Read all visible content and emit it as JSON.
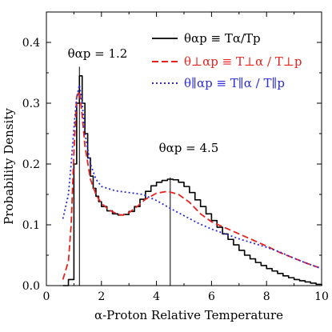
{
  "chart_data": {
    "type": "line",
    "xlabel": "α-Proton Relative Temperature",
    "ylabel": "Probability Density",
    "xlim": [
      0,
      10
    ],
    "ylim": [
      0,
      0.45
    ],
    "xticks": [
      0,
      2,
      4,
      6,
      8,
      10
    ],
    "yticks": [
      0.0,
      0.1,
      0.2,
      0.3,
      0.4
    ],
    "xtick_labels": [
      "0",
      "2",
      "4",
      "6",
      "8",
      "10"
    ],
    "ytick_labels": [
      "0.0",
      "0.1",
      "0.2",
      "0.3",
      "0.4"
    ],
    "grid": false,
    "legend_position": "top-right",
    "colors": {
      "total": "#000000",
      "perp": "#e8231f",
      "par": "#2b2bdc"
    },
    "series": [
      {
        "name": "θαp ≡ Tα/Tp",
        "style": "solid-step",
        "color": "#000000",
        "x": [
          0.6,
          0.8,
          1.0,
          1.1,
          1.2,
          1.3,
          1.4,
          1.5,
          1.6,
          1.7,
          1.8,
          1.9,
          2.0,
          2.2,
          2.4,
          2.6,
          2.8,
          3.0,
          3.2,
          3.4,
          3.6,
          3.8,
          4.0,
          4.2,
          4.4,
          4.6,
          4.8,
          5.0,
          5.2,
          5.4,
          5.6,
          5.8,
          6.0,
          6.2,
          6.4,
          6.6,
          6.8,
          7.0,
          7.2,
          7.4,
          7.6,
          7.8,
          8.0,
          8.2,
          8.4,
          8.6,
          8.8,
          9.0,
          9.2,
          9.4,
          9.6,
          9.8,
          10.0
        ],
        "y": [
          0.0,
          0.01,
          0.2,
          0.3,
          0.345,
          0.3,
          0.25,
          0.21,
          0.18,
          0.16,
          0.147,
          0.138,
          0.13,
          0.123,
          0.118,
          0.116,
          0.117,
          0.122,
          0.13,
          0.142,
          0.155,
          0.164,
          0.17,
          0.173,
          0.175,
          0.174,
          0.17,
          0.163,
          0.153,
          0.141,
          0.13,
          0.118,
          0.107,
          0.096,
          0.085,
          0.076,
          0.067,
          0.058,
          0.05,
          0.044,
          0.038,
          0.033,
          0.028,
          0.024,
          0.02,
          0.016,
          0.013,
          0.01,
          0.008,
          0.006,
          0.004,
          0.002,
          0.0
        ]
      },
      {
        "name": "θ⊥αp ≡ T⊥α / T⊥p",
        "style": "dashed",
        "color": "#e8231f",
        "x": [
          0.6,
          0.8,
          0.9,
          1.0,
          1.1,
          1.2,
          1.3,
          1.4,
          1.6,
          1.8,
          2.0,
          2.3,
          2.6,
          2.8,
          3.0,
          3.3,
          3.6,
          4.0,
          4.4,
          4.8,
          5.2,
          5.6,
          6.0,
          6.5,
          7.0,
          7.5,
          8.0,
          8.5,
          9.0,
          9.5,
          10.0
        ],
        "y": [
          0.01,
          0.04,
          0.1,
          0.22,
          0.31,
          0.32,
          0.28,
          0.23,
          0.175,
          0.15,
          0.135,
          0.124,
          0.117,
          0.116,
          0.12,
          0.13,
          0.142,
          0.152,
          0.155,
          0.15,
          0.137,
          0.118,
          0.105,
          0.095,
          0.085,
          0.075,
          0.065,
          0.054,
          0.045,
          0.036,
          0.028
        ]
      },
      {
        "name": "θ∥αp ≡ T∥α / T∥p",
        "style": "dotted",
        "color": "#2b2bdc",
        "x": [
          0.6,
          0.8,
          0.9,
          1.0,
          1.1,
          1.2,
          1.3,
          1.4,
          1.6,
          1.8,
          2.0,
          2.5,
          3.0,
          3.5,
          4.0,
          4.5,
          5.0,
          5.5,
          6.0,
          6.5,
          7.0,
          7.5,
          8.0,
          8.5,
          9.0,
          9.5,
          10.0
        ],
        "y": [
          0.11,
          0.15,
          0.2,
          0.26,
          0.31,
          0.33,
          0.3,
          0.25,
          0.2,
          0.175,
          0.163,
          0.156,
          0.153,
          0.15,
          0.14,
          0.127,
          0.115,
          0.103,
          0.093,
          0.085,
          0.077,
          0.07,
          0.063,
          0.055,
          0.045,
          0.036,
          0.028
        ]
      }
    ],
    "annotations": [
      {
        "label": "θαp = 1.2",
        "x": 1.2,
        "ymax": 0.36
      },
      {
        "label": "θαp = 4.5",
        "x": 4.5,
        "ymax": 0.178
      }
    ]
  }
}
